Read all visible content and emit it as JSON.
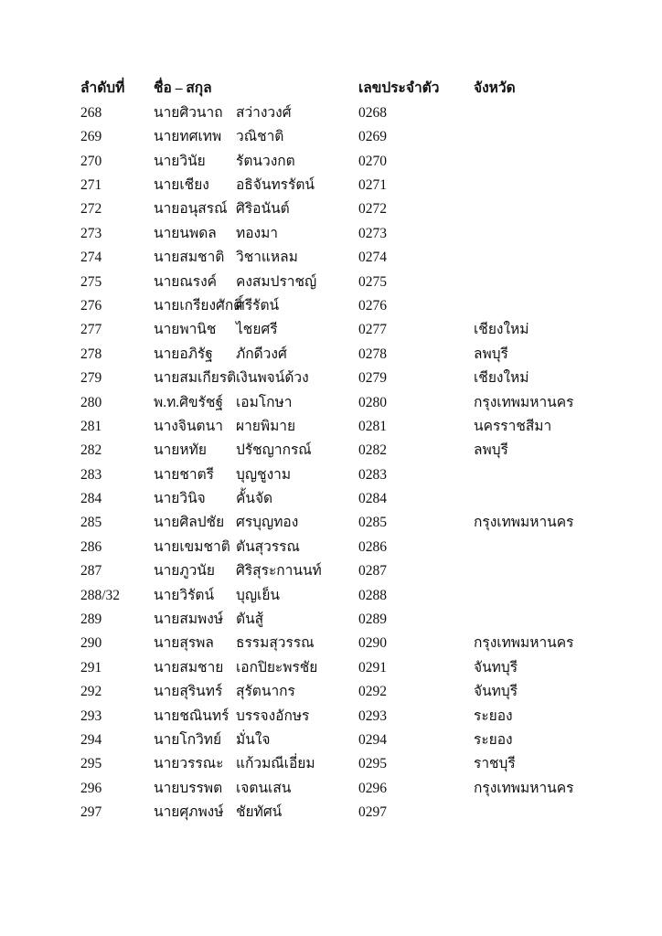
{
  "table": {
    "columns": {
      "index": "ลำดับที่",
      "name": "ชื่อ – สกุล",
      "id": "เลขประจำตัว",
      "province": "จังหวัด"
    },
    "rows": [
      {
        "no": "268",
        "first": "นายศิวนาถ",
        "last": "สว่างวงศ์",
        "id": "0268",
        "province": ""
      },
      {
        "no": "269",
        "first": "นายทศเทพ",
        "last": "วณิชาติ",
        "id": "0269",
        "province": ""
      },
      {
        "no": "270",
        "first": "นายวินัย",
        "last": "รัตนวงกต",
        "id": "0270",
        "province": ""
      },
      {
        "no": "271",
        "first": "นายเชียง",
        "last": "อธิจันทรรัตน์",
        "id": "0271",
        "province": ""
      },
      {
        "no": "272",
        "first": "นายอนุสรณ์",
        "last": "ศิริอนันต์",
        "id": "0272",
        "province": ""
      },
      {
        "no": "273",
        "first": "นายนพดล",
        "last": "ทองมา",
        "id": "0273",
        "province": ""
      },
      {
        "no": "274",
        "first": "นายสมชาติ",
        "last": "วิชาแหลม",
        "id": "0274",
        "province": ""
      },
      {
        "no": "275",
        "first": "นายณรงค์",
        "last": "คงสมปราชญ์",
        "id": "0275",
        "province": ""
      },
      {
        "no": "276",
        "first": "นายเกรียงศักดิ์",
        "last": "ศรีรัตน์",
        "id": "0276",
        "province": ""
      },
      {
        "no": "277",
        "first": "นายพานิช",
        "last": "ไชยศรี",
        "id": "0277",
        "province": "เชียงใหม่"
      },
      {
        "no": "278",
        "first": "นายอภิรัฐ",
        "last": "ภักดีวงศ์",
        "id": "0278",
        "province": "ลพบุรี"
      },
      {
        "no": "279",
        "first": "นายสมเกียรติ",
        "last": "เงินพจน์ด้วง",
        "id": "0279",
        "province": "เชียงใหม่"
      },
      {
        "no": "280",
        "first": "พ.ท.ศิขรัชฐ์",
        "last": "เอมโกษา",
        "id": "0280",
        "province": "กรุงเทพมหานคร"
      },
      {
        "no": "281",
        "first": "นางจินตนา",
        "last": "ผายพิมาย",
        "id": "0281",
        "province": "นครราชสีมา"
      },
      {
        "no": "282",
        "first": "นายหทัย",
        "last": "ปรัชญากรณ์",
        "id": "0282",
        "province": "ลพบุรี"
      },
      {
        "no": "283",
        "first": "นายชาตรี",
        "last": "บุญชูงาม",
        "id": "0283",
        "province": ""
      },
      {
        "no": "284",
        "first": "นายวินิจ",
        "last": "คั้นจัด",
        "id": "0284",
        "province": ""
      },
      {
        "no": "285",
        "first": "นายศิลปชัย",
        "last": "ศรบุญทอง",
        "id": "0285",
        "province": "กรุงเทพมหานคร"
      },
      {
        "no": "286",
        "first": "นายเขมชาติ",
        "last": "ตันสุวรรณ",
        "id": "0286",
        "province": ""
      },
      {
        "no": "287",
        "first": "นายภูวนัย",
        "last": "ศิริสุระกานนท์",
        "id": "0287",
        "province": ""
      },
      {
        "no": "288/32",
        "first": "นายวิรัตน์",
        "last": "บุญเย็น",
        "id": "0288",
        "province": ""
      },
      {
        "no": "289",
        "first": "นายสมพงษ์",
        "last": "ตันสู้",
        "id": "0289",
        "province": ""
      },
      {
        "no": "290",
        "first": "นายสุรพล",
        "last": "ธรรมสุวรรณ",
        "id": "0290",
        "province": "กรุงเทพมหานคร"
      },
      {
        "no": "291",
        "first": "นายสมชาย",
        "last": "เอกปิยะพรชัย",
        "id": "0291",
        "province": "จันทบุรี"
      },
      {
        "no": "292",
        "first": "นายสุรินทร์",
        "last": "สุรัตนากร",
        "id": "0292",
        "province": "จันทบุรี"
      },
      {
        "no": "293",
        "first": "นายชณินทร์",
        "last": "บรรจงอักษร",
        "id": "0293",
        "province": "ระยอง"
      },
      {
        "no": "294",
        "first": "นายโกวิทย์",
        "last": "มั่นใจ",
        "id": "0294",
        "province": "ระยอง"
      },
      {
        "no": "295",
        "first": "นายวรรณะ",
        "last": "แก้วมณีเอี่ยม",
        "id": "0295",
        "province": "ราชบุรี"
      },
      {
        "no": "296",
        "first": "นายบรรพต",
        "last": "เจตนเสน",
        "id": "0296",
        "province": "กรุงเทพมหานคร"
      },
      {
        "no": "297",
        "first": "นายศุภพงษ์",
        "last": "ชัยทัศน์",
        "id": "0297",
        "province": ""
      }
    ]
  }
}
